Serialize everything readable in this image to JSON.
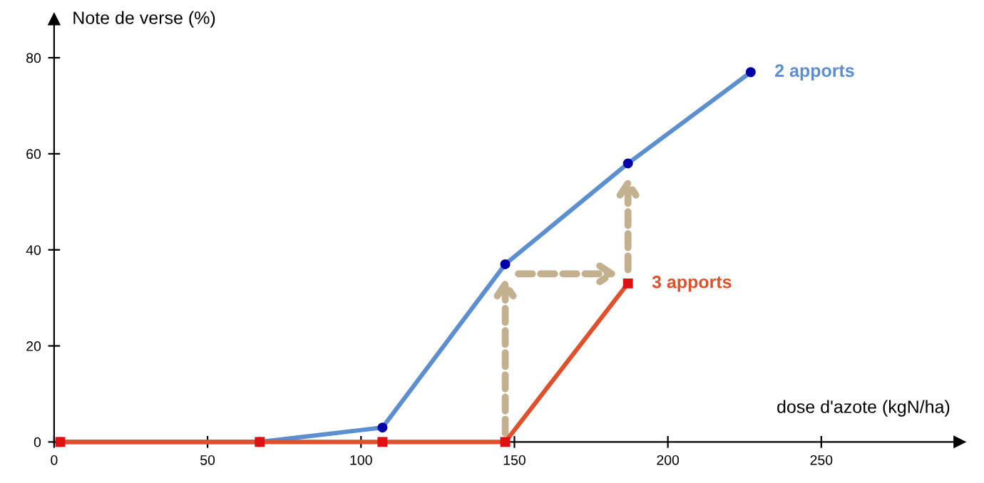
{
  "chart_data": {
    "type": "line",
    "ylabel": "Note de verse (%)",
    "xlabel": "dose d'azote (kgN/ha)",
    "xlim": [
      0,
      295
    ],
    "ylim": [
      0,
      88
    ],
    "xticks": [
      0,
      50,
      100,
      150,
      200,
      250
    ],
    "yticks": [
      0,
      20,
      40,
      60,
      80
    ],
    "grid": false,
    "legend": false,
    "series": [
      {
        "name": "2 apports",
        "color": "#5b8fd0",
        "marker": "circle",
        "x": [
          2,
          67,
          107,
          147,
          187,
          227
        ],
        "values": [
          0,
          0,
          3,
          37,
          58,
          77
        ]
      },
      {
        "name": "3 apports",
        "color": "#e0502a",
        "marker": "square",
        "x": [
          2,
          67,
          107,
          147,
          187
        ],
        "values": [
          0,
          0,
          0,
          0,
          33
        ]
      }
    ]
  }
}
